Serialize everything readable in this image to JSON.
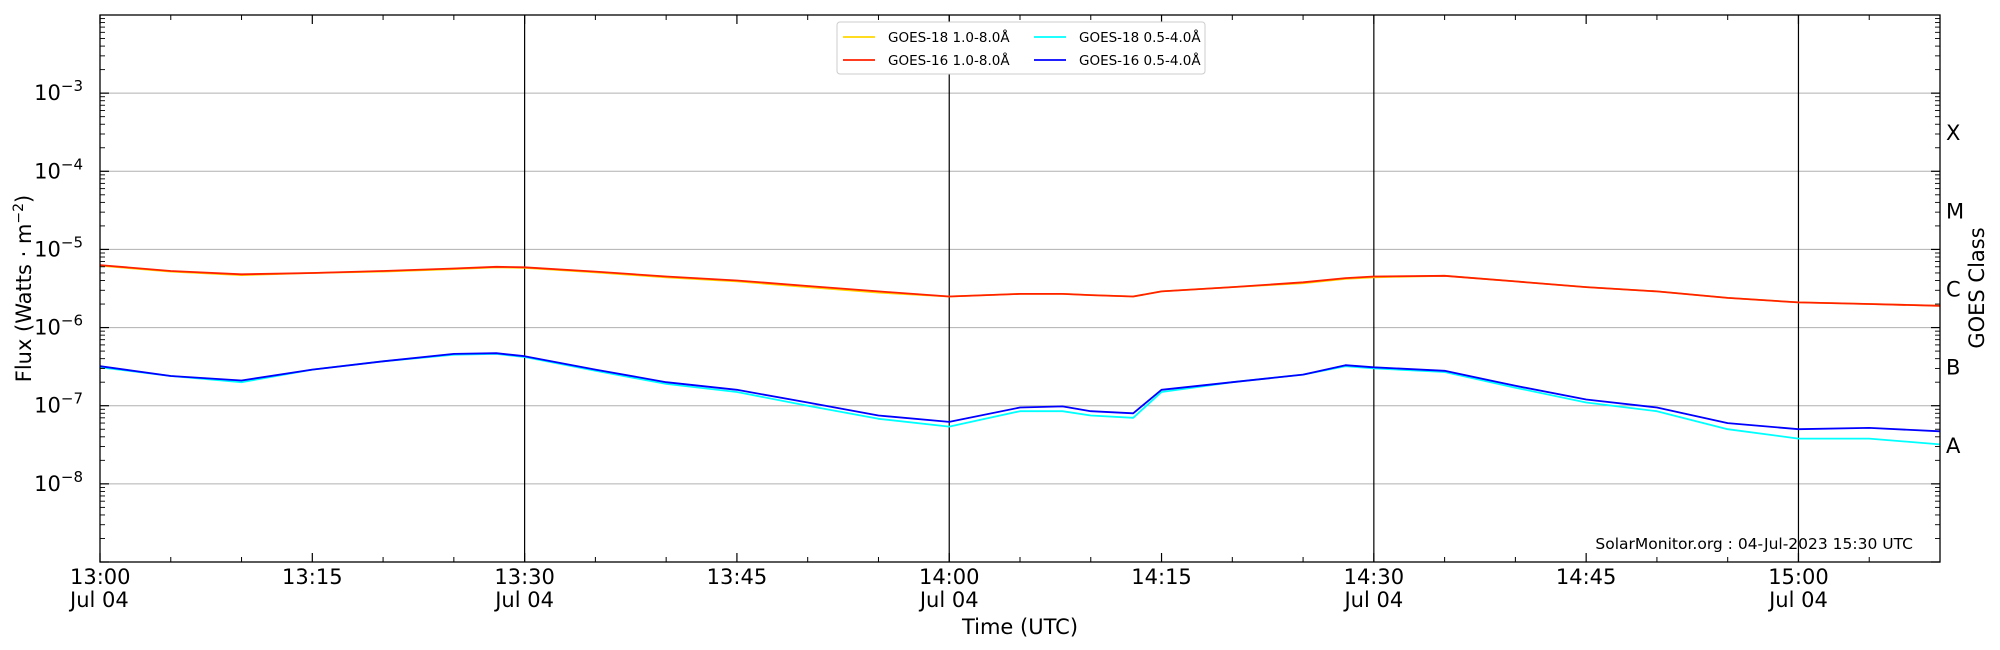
{
  "chart_data": {
    "type": "line",
    "xlabel": "Time (UTC)",
    "ylabel_main": "Flux (Watts · m",
    "ylabel_sup": "−2",
    "ylabel_close": ")",
    "right_axis_label": "GOES Class",
    "y_scale": "log",
    "xlim": [
      "13:00",
      "15:10"
    ],
    "ylim": [
      1e-09,
      0.01
    ],
    "x_ticks": [
      {
        "value": "13:00",
        "label": "13:00",
        "sublabel": "Jul 04"
      },
      {
        "value": "13:15",
        "label": "13:15",
        "sublabel": ""
      },
      {
        "value": "13:30",
        "label": "13:30",
        "sublabel": "Jul 04"
      },
      {
        "value": "13:45",
        "label": "13:45",
        "sublabel": ""
      },
      {
        "value": "14:00",
        "label": "14:00",
        "sublabel": "Jul 04"
      },
      {
        "value": "14:15",
        "label": "14:15",
        "sublabel": ""
      },
      {
        "value": "14:30",
        "label": "14:30",
        "sublabel": "Jul 04"
      },
      {
        "value": "14:45",
        "label": "14:45",
        "sublabel": ""
      },
      {
        "value": "15:00",
        "label": "15:00",
        "sublabel": "Jul 04"
      }
    ],
    "y_ticks": [
      {
        "value": 1e-08,
        "mantissa": "10",
        "exponent": "−8"
      },
      {
        "value": 1e-07,
        "mantissa": "10",
        "exponent": "−7"
      },
      {
        "value": 1e-06,
        "mantissa": "10",
        "exponent": "−6"
      },
      {
        "value": 1e-05,
        "mantissa": "10",
        "exponent": "−5"
      },
      {
        "value": 0.0001,
        "mantissa": "10",
        "exponent": "−4"
      },
      {
        "value": 0.001,
        "mantissa": "10",
        "exponent": "−3"
      }
    ],
    "goes_classes": [
      {
        "label": "A",
        "value": 3.16e-08
      },
      {
        "label": "B",
        "value": 3.16e-07
      },
      {
        "label": "C",
        "value": 3.16e-06
      },
      {
        "label": "M",
        "value": 3.16e-05
      },
      {
        "label": "X",
        "value": 0.000316
      }
    ],
    "vertical_lines": [
      "13:30",
      "14:00",
      "14:30",
      "15:00"
    ],
    "grid": "horizontal",
    "legend_position": "top-center",
    "x": [
      "13:00",
      "13:05",
      "13:10",
      "13:15",
      "13:20",
      "13:25",
      "13:28",
      "13:30",
      "13:35",
      "13:40",
      "13:45",
      "13:50",
      "13:55",
      "14:00",
      "14:05",
      "14:08",
      "14:10",
      "14:13",
      "14:15",
      "14:20",
      "14:25",
      "14:28",
      "14:30",
      "14:35",
      "14:40",
      "14:45",
      "14:50",
      "14:55",
      "15:00",
      "15:05",
      "15:10"
    ],
    "series": [
      {
        "name": "GOES-18 1.0-8.0Å",
        "color": "#ffd700",
        "values": [
          6.2e-06,
          5.2e-06,
          4.7e-06,
          5e-06,
          5.2e-06,
          5.6e-06,
          5.9e-06,
          5.8e-06,
          5.1e-06,
          4.4e-06,
          3.9e-06,
          3.3e-06,
          2.8e-06,
          2.5e-06,
          2.7e-06,
          2.7e-06,
          2.6e-06,
          2.5e-06,
          2.9e-06,
          3.3e-06,
          3.7e-06,
          4.2e-06,
          4.4e-06,
          4.6e-06,
          3.9e-06,
          3.3e-06,
          2.9e-06,
          2.4e-06,
          2.1e-06,
          2e-06,
          1.9e-06
        ]
      },
      {
        "name": "GOES-18 0.5-4.0Å",
        "color": "#00ffff",
        "values": [
          3.1e-07,
          2.4e-07,
          2e-07,
          2.9e-07,
          3.7e-07,
          4.5e-07,
          4.6e-07,
          4.2e-07,
          2.8e-07,
          1.9e-07,
          1.5e-07,
          1e-07,
          6.8e-08,
          5.4e-08,
          8.5e-08,
          8.5e-08,
          7.5e-08,
          7e-08,
          1.5e-07,
          2e-07,
          2.5e-07,
          3.2e-07,
          3e-07,
          2.7e-07,
          1.7e-07,
          1.1e-07,
          8.5e-08,
          5e-08,
          3.8e-08,
          3.8e-08,
          3.2e-08
        ]
      },
      {
        "name": "GOES-16 1.0-8.0Å",
        "color": "#ff2000",
        "values": [
          6.3e-06,
          5.3e-06,
          4.8e-06,
          5e-06,
          5.3e-06,
          5.7e-06,
          6e-06,
          5.9e-06,
          5.2e-06,
          4.5e-06,
          4e-06,
          3.4e-06,
          2.9e-06,
          2.5e-06,
          2.7e-06,
          2.7e-06,
          2.6e-06,
          2.5e-06,
          2.9e-06,
          3.3e-06,
          3.8e-06,
          4.3e-06,
          4.5e-06,
          4.6e-06,
          3.9e-06,
          3.3e-06,
          2.9e-06,
          2.4e-06,
          2.1e-06,
          2e-06,
          1.9e-06
        ]
      },
      {
        "name": "GOES-16 0.5-4.0Å",
        "color": "#0000ff",
        "values": [
          3.2e-07,
          2.4e-07,
          2.1e-07,
          2.9e-07,
          3.7e-07,
          4.6e-07,
          4.7e-07,
          4.3e-07,
          2.9e-07,
          2e-07,
          1.6e-07,
          1.1e-07,
          7.5e-08,
          6.2e-08,
          9.5e-08,
          9.8e-08,
          8.5e-08,
          8e-08,
          1.6e-07,
          2e-07,
          2.5e-07,
          3.3e-07,
          3.1e-07,
          2.8e-07,
          1.8e-07,
          1.2e-07,
          9.5e-08,
          6e-08,
          5e-08,
          5.2e-08,
          4.7e-08
        ]
      }
    ],
    "legend_order": [
      0,
      1,
      2,
      3
    ],
    "credit": "SolarMonitor.org : 04-Jul-2023 15:30 UTC"
  }
}
